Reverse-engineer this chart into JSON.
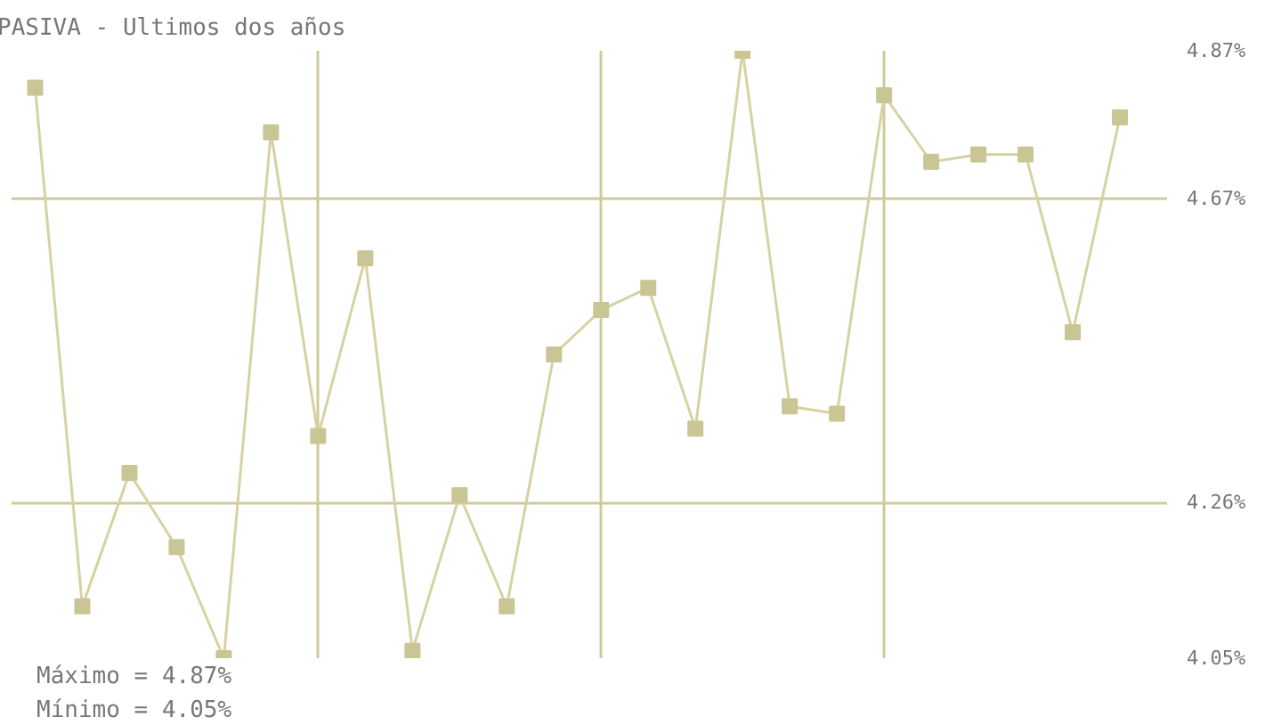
{
  "chart_data": {
    "type": "line",
    "title": "PASIVA - Ultimos dos años",
    "categories": [
      null,
      null,
      null,
      null,
      null,
      null,
      null,
      null,
      null,
      null,
      null,
      null,
      null,
      null,
      null,
      null,
      null,
      null,
      null,
      null,
      null,
      null,
      null,
      null
    ],
    "series": [
      {
        "color": "#d6d2a2",
        "values": [
          4.82,
          4.12,
          4.3,
          4.2,
          4.05,
          4.76,
          4.35,
          4.59,
          4.06,
          4.27,
          4.12,
          4.46,
          4.52,
          4.55,
          4.36,
          4.87,
          4.39,
          4.38,
          4.81,
          4.72,
          4.73,
          4.73,
          4.49,
          4.78
        ]
      }
    ],
    "ylim": [
      4.05,
      4.87
    ],
    "yticks": [
      {
        "value": 4.05,
        "label": "4.05%"
      },
      {
        "value": 4.26,
        "label": "4.26%"
      },
      {
        "value": 4.67,
        "label": "4.67%"
      },
      {
        "value": 4.87,
        "label": "4.87%"
      }
    ],
    "grid": true,
    "marker": "square",
    "line_style": "solid",
    "tick_labels": "y",
    "annotations": [
      "Máximo = 4.87%",
      "Mínimo = 4.05%"
    ]
  }
}
